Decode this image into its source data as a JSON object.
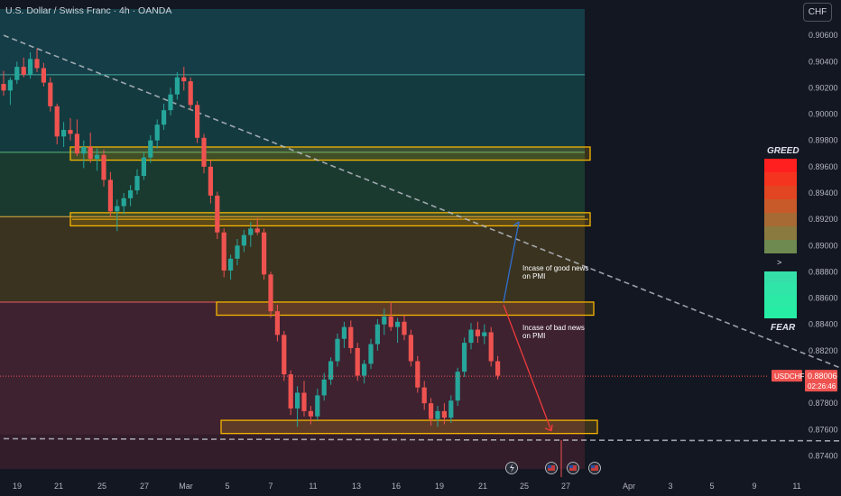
{
  "header": {
    "title": "U.S. Dollar / Swiss Franc · 4h · OANDA",
    "currency_button": "CHF"
  },
  "colors": {
    "background": "#131722",
    "bull": "#26a69a",
    "bear": "#ef5350",
    "zone_border": "#f5b400",
    "trendline": "#c0c3cc",
    "good_news_arrow": "#2f6fcf",
    "bad_news_arrow": "#ef3a3a"
  },
  "chart_data": {
    "type": "candlestick",
    "symbol": "USDCHF",
    "timeframe": "4h",
    "ylim": [
      0.873,
      0.908
    ],
    "y_ticks": [
      "0.90600",
      "0.90400",
      "0.90200",
      "0.90000",
      "0.89800",
      "0.89600",
      "0.89400",
      "0.89200",
      "0.89000",
      "0.88800",
      "0.88600",
      "0.88400",
      "0.88200",
      "0.88000",
      "0.87800",
      "0.87600",
      "0.87400"
    ],
    "x_ticks": [
      "19",
      "21",
      "25",
      "27",
      "Mar",
      "5",
      "7",
      "11",
      "13",
      "16",
      "19",
      "21",
      "25",
      "27",
      "Apr",
      "3",
      "5",
      "9",
      "11"
    ],
    "last_price": {
      "label": "USDCHF",
      "value": "0.88006",
      "countdown": "02:26:46"
    },
    "backgrounds": [
      {
        "from": 0.903,
        "to": 0.908,
        "color": "#143d47"
      },
      {
        "from": 0.8971,
        "to": 0.903,
        "color": "#133a3f"
      },
      {
        "from": 0.8922,
        "to": 0.8971,
        "color": "#1a3a30"
      },
      {
        "from": 0.8857,
        "to": 0.8922,
        "color": "#3a3320"
      },
      {
        "from": 0.8756,
        "to": 0.8857,
        "color": "#3e2230"
      },
      {
        "from": 0.873,
        "to": 0.8756,
        "color": "#331d2a"
      }
    ],
    "level_lines": [
      {
        "price": 0.903,
        "color": "#45a8a0"
      },
      {
        "price": 0.8971,
        "color": "#58b878"
      },
      {
        "price": 0.8922,
        "color": "#e0b040"
      },
      {
        "price": 0.8857,
        "color": "#e85a60"
      }
    ],
    "zones": [
      {
        "top": 0.8975,
        "bottom": 0.8965
      },
      {
        "top": 0.8925,
        "bottom": 0.8915
      },
      {
        "top": 0.8857,
        "bottom": 0.8847
      },
      {
        "top": 0.8767,
        "bottom": 0.8757
      }
    ],
    "trendlines": [
      {
        "from": [
          0,
          0.906
        ],
        "to": [
          153,
          0.8751
        ]
      },
      {
        "from": [
          0,
          0.8753
        ],
        "to": [
          157,
          0.8751
        ]
      }
    ],
    "candles": [
      [
        0.9023,
        0.9033,
        0.9014,
        0.9018
      ],
      [
        0.9018,
        0.9028,
        0.9007,
        0.9026
      ],
      [
        0.9026,
        0.904,
        0.9023,
        0.9036
      ],
      [
        0.9036,
        0.9043,
        0.9028,
        0.903
      ],
      [
        0.903,
        0.9047,
        0.9027,
        0.9042
      ],
      [
        0.9042,
        0.905,
        0.9032,
        0.9035
      ],
      [
        0.9035,
        0.9039,
        0.9021,
        0.9024
      ],
      [
        0.9024,
        0.9028,
        0.9002,
        0.9006
      ],
      [
        0.9006,
        0.9008,
        0.8977,
        0.8983
      ],
      [
        0.8983,
        0.8994,
        0.8975,
        0.8988
      ],
      [
        0.8988,
        0.8997,
        0.898,
        0.8985
      ],
      [
        0.8985,
        0.8996,
        0.8968,
        0.897
      ],
      [
        0.897,
        0.898,
        0.8959,
        0.8975
      ],
      [
        0.8975,
        0.8986,
        0.8963,
        0.8966
      ],
      [
        0.8966,
        0.8974,
        0.8957,
        0.8969
      ],
      [
        0.8969,
        0.8973,
        0.8945,
        0.895
      ],
      [
        0.895,
        0.8956,
        0.8922,
        0.8926
      ],
      [
        0.8926,
        0.8935,
        0.8911,
        0.893
      ],
      [
        0.893,
        0.894,
        0.8924,
        0.8936
      ],
      [
        0.8936,
        0.8946,
        0.893,
        0.8942
      ],
      [
        0.8942,
        0.8958,
        0.8939,
        0.8953
      ],
      [
        0.8953,
        0.8971,
        0.895,
        0.8967
      ],
      [
        0.8967,
        0.8984,
        0.8963,
        0.898
      ],
      [
        0.898,
        0.8996,
        0.8974,
        0.8992
      ],
      [
        0.8992,
        0.9008,
        0.8988,
        0.9003
      ],
      [
        0.9003,
        0.902,
        0.8999,
        0.9015
      ],
      [
        0.9015,
        0.9032,
        0.9011,
        0.9028
      ],
      [
        0.9028,
        0.9036,
        0.9018,
        0.9025
      ],
      [
        0.9025,
        0.9028,
        0.9003,
        0.9007
      ],
      [
        0.9007,
        0.901,
        0.8978,
        0.8982
      ],
      [
        0.8982,
        0.8985,
        0.8955,
        0.896
      ],
      [
        0.896,
        0.8965,
        0.8932,
        0.8938
      ],
      [
        0.8938,
        0.8941,
        0.8905,
        0.891
      ],
      [
        0.891,
        0.8913,
        0.8876,
        0.8881
      ],
      [
        0.8881,
        0.8893,
        0.8874,
        0.889
      ],
      [
        0.889,
        0.8905,
        0.8885,
        0.89
      ],
      [
        0.89,
        0.8912,
        0.8895,
        0.8908
      ],
      [
        0.8908,
        0.8918,
        0.8899,
        0.8913
      ],
      [
        0.8913,
        0.8921,
        0.8908,
        0.891
      ],
      [
        0.891,
        0.8913,
        0.8874,
        0.8878
      ],
      [
        0.8878,
        0.888,
        0.8845,
        0.885
      ],
      [
        0.885,
        0.8855,
        0.8827,
        0.8832
      ],
      [
        0.8832,
        0.8835,
        0.8797,
        0.8802
      ],
      [
        0.8802,
        0.8805,
        0.8771,
        0.8776
      ],
      [
        0.8776,
        0.8793,
        0.8762,
        0.8788
      ],
      [
        0.8788,
        0.8797,
        0.877,
        0.8774
      ],
      [
        0.8774,
        0.8778,
        0.8764,
        0.877
      ],
      [
        0.877,
        0.8791,
        0.8767,
        0.8786
      ],
      [
        0.8786,
        0.8803,
        0.8782,
        0.8798
      ],
      [
        0.8798,
        0.8815,
        0.8794,
        0.8812
      ],
      [
        0.8812,
        0.8833,
        0.8808,
        0.8829
      ],
      [
        0.8829,
        0.8842,
        0.8822,
        0.8838
      ],
      [
        0.8838,
        0.8843,
        0.8818,
        0.8822
      ],
      [
        0.8822,
        0.8826,
        0.8797,
        0.8801
      ],
      [
        0.8801,
        0.8813,
        0.8795,
        0.881
      ],
      [
        0.881,
        0.8829,
        0.8806,
        0.8825
      ],
      [
        0.8825,
        0.8844,
        0.882,
        0.884
      ],
      [
        0.884,
        0.8852,
        0.8832,
        0.8846
      ],
      [
        0.8846,
        0.8857,
        0.8835,
        0.8838
      ],
      [
        0.8838,
        0.8845,
        0.8826,
        0.8842
      ],
      [
        0.8842,
        0.8847,
        0.8828,
        0.8832
      ],
      [
        0.8832,
        0.8836,
        0.8808,
        0.8812
      ],
      [
        0.8812,
        0.8816,
        0.8788,
        0.8792
      ],
      [
        0.8792,
        0.8797,
        0.8775,
        0.878
      ],
      [
        0.878,
        0.8784,
        0.8763,
        0.8768
      ],
      [
        0.8768,
        0.8778,
        0.8762,
        0.8774
      ],
      [
        0.8774,
        0.878,
        0.8764,
        0.8769
      ],
      [
        0.8769,
        0.8786,
        0.8765,
        0.8782
      ],
      [
        0.8782,
        0.8807,
        0.8778,
        0.8804
      ],
      [
        0.8804,
        0.883,
        0.88,
        0.8826
      ],
      [
        0.8826,
        0.8841,
        0.8821,
        0.8836
      ],
      [
        0.8836,
        0.8842,
        0.8826,
        0.8831
      ],
      [
        0.8831,
        0.884,
        0.8825,
        0.8834
      ],
      [
        0.8834,
        0.8838,
        0.8808,
        0.8812
      ],
      [
        0.8812,
        0.8816,
        0.8798,
        0.8801
      ]
    ],
    "annotations": [
      {
        "lines": [
          "Incase of good news",
          "on PMI"
        ],
        "anchor": "above-arrow"
      },
      {
        "lines": [
          "Incase of bad news",
          "on PMI"
        ],
        "anchor": "below-arrow"
      }
    ],
    "event_icons": [
      "lightning-icon",
      "us-flag-icon",
      "us-flag-icon",
      "us-flag-icon"
    ],
    "fear_greed": {
      "top_label": "GREED",
      "bottom_label": "FEAR",
      "marker": ">"
    }
  }
}
